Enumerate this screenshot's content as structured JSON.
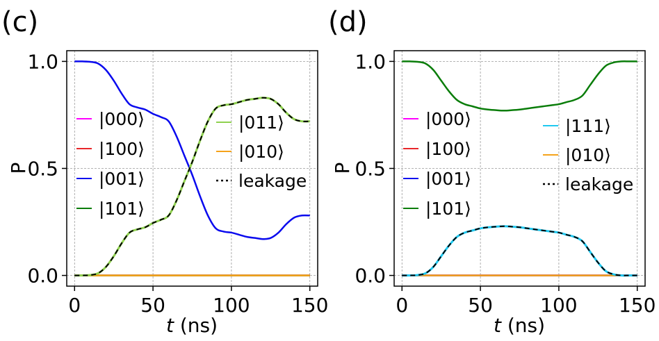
{
  "chart_data": [
    {
      "panel_label": "(c)",
      "type": "line",
      "xlabel_var": "t",
      "xlabel_unit": " (ns)",
      "ylabel": "P",
      "xlim": [
        -5,
        155
      ],
      "ylim": [
        -0.05,
        1.05
      ],
      "xticks": [
        0,
        50,
        100,
        150
      ],
      "xtick_labels": [
        "0",
        "50",
        "100",
        "150"
      ],
      "yticks": [
        0.0,
        0.5,
        1.0
      ],
      "ytick_labels": [
        "0.0",
        "0.5",
        "1.0"
      ],
      "grid": true,
      "legend_left": [
        "|000⟩",
        "|100⟩",
        "|001⟩",
        "|101⟩"
      ],
      "legend_right": [
        "|011⟩",
        "|010⟩",
        "leakage"
      ],
      "series": [
        {
          "name": "|000⟩",
          "color": "#ff00ff",
          "dash": false,
          "width": 2.5,
          "x": [
            0,
            150
          ],
          "y": [
            0.0,
            0.0
          ]
        },
        {
          "name": "|100⟩",
          "color": "#e8262a",
          "dash": false,
          "width": 2.5,
          "x": [
            0,
            150
          ],
          "y": [
            0.0,
            0.0
          ]
        },
        {
          "name": "|101⟩",
          "color": "#0a7d0a",
          "dash": false,
          "width": 2.5,
          "x": [
            0,
            150
          ],
          "y": [
            0.0,
            0.0
          ]
        },
        {
          "name": "|010⟩",
          "color": "#f5a31a",
          "dash": false,
          "width": 2.5,
          "x": [
            0,
            150
          ],
          "y": [
            0.0,
            0.0
          ]
        },
        {
          "name": "|001⟩",
          "color": "#0a0aee",
          "dash": false,
          "width": 2.5,
          "x": [
            0,
            5,
            10,
            15,
            20,
            25,
            30,
            35,
            40,
            45,
            50,
            55,
            60,
            65,
            70,
            75,
            80,
            85,
            90,
            95,
            100,
            105,
            110,
            115,
            120,
            125,
            130,
            135,
            140,
            145,
            150
          ],
          "y": [
            1.0,
            1.0,
            0.998,
            0.99,
            0.96,
            0.91,
            0.85,
            0.8,
            0.785,
            0.775,
            0.755,
            0.74,
            0.72,
            0.65,
            0.56,
            0.47,
            0.37,
            0.28,
            0.22,
            0.205,
            0.2,
            0.19,
            0.18,
            0.175,
            0.17,
            0.175,
            0.2,
            0.24,
            0.27,
            0.28,
            0.28
          ]
        },
        {
          "name": "|011⟩",
          "color": "#8fd14f",
          "dash": false,
          "width": 3,
          "x": [
            0,
            5,
            10,
            15,
            20,
            25,
            30,
            35,
            40,
            45,
            50,
            55,
            60,
            65,
            70,
            75,
            80,
            85,
            90,
            95,
            100,
            105,
            110,
            115,
            120,
            125,
            130,
            135,
            140,
            145,
            150
          ],
          "y": [
            0.0,
            0.0,
            0.002,
            0.01,
            0.04,
            0.09,
            0.15,
            0.2,
            0.215,
            0.225,
            0.245,
            0.26,
            0.28,
            0.35,
            0.44,
            0.53,
            0.63,
            0.72,
            0.78,
            0.795,
            0.8,
            0.81,
            0.82,
            0.825,
            0.83,
            0.825,
            0.8,
            0.76,
            0.73,
            0.72,
            0.72
          ]
        },
        {
          "name": "leakage",
          "color": "#000000",
          "dash": true,
          "width": 2,
          "x": [
            0,
            5,
            10,
            15,
            20,
            25,
            30,
            35,
            40,
            45,
            50,
            55,
            60,
            65,
            70,
            75,
            80,
            85,
            90,
            95,
            100,
            105,
            110,
            115,
            120,
            125,
            130,
            135,
            140,
            145,
            150
          ],
          "y": [
            0.0,
            0.0,
            0.002,
            0.01,
            0.04,
            0.09,
            0.15,
            0.2,
            0.215,
            0.225,
            0.245,
            0.26,
            0.28,
            0.35,
            0.44,
            0.53,
            0.63,
            0.72,
            0.78,
            0.795,
            0.8,
            0.81,
            0.82,
            0.825,
            0.83,
            0.825,
            0.8,
            0.76,
            0.73,
            0.72,
            0.72
          ]
        }
      ]
    },
    {
      "panel_label": "(d)",
      "type": "line",
      "xlabel_var": "t",
      "xlabel_unit": " (ns)",
      "ylabel": "P",
      "xlim": [
        -5,
        155
      ],
      "ylim": [
        -0.05,
        1.05
      ],
      "xticks": [
        0,
        50,
        100,
        150
      ],
      "xtick_labels": [
        "0",
        "50",
        "100",
        "150"
      ],
      "yticks": [
        0.0,
        0.5,
        1.0
      ],
      "ytick_labels": [
        "0.0",
        "0.5",
        "1.0"
      ],
      "grid": true,
      "legend_left": [
        "|000⟩",
        "|100⟩",
        "|001⟩",
        "|101⟩"
      ],
      "legend_right": [
        "|111⟩",
        "|010⟩",
        "leakage"
      ],
      "series": [
        {
          "name": "|000⟩",
          "color": "#ff00ff",
          "dash": false,
          "width": 2.5,
          "x": [
            0,
            150
          ],
          "y": [
            0.0,
            0.0
          ]
        },
        {
          "name": "|100⟩",
          "color": "#e8262a",
          "dash": false,
          "width": 2.5,
          "x": [
            0,
            150
          ],
          "y": [
            0.0,
            0.0
          ]
        },
        {
          "name": "|001⟩",
          "color": "#0a0aee",
          "dash": false,
          "width": 2.5,
          "x": [
            0,
            150
          ],
          "y": [
            0.0,
            0.0
          ]
        },
        {
          "name": "|010⟩",
          "color": "#f5a31a",
          "dash": false,
          "width": 2.5,
          "x": [
            0,
            150
          ],
          "y": [
            0.0,
            0.0
          ]
        },
        {
          "name": "|101⟩",
          "color": "#0a7d0a",
          "dash": false,
          "width": 2.5,
          "x": [
            0,
            5,
            10,
            15,
            20,
            25,
            30,
            35,
            40,
            45,
            50,
            55,
            60,
            65,
            70,
            75,
            80,
            85,
            90,
            95,
            100,
            105,
            110,
            115,
            120,
            125,
            130,
            135,
            140,
            145,
            150
          ],
          "y": [
            1.0,
            1.0,
            0.998,
            0.99,
            0.96,
            0.91,
            0.86,
            0.82,
            0.8,
            0.79,
            0.78,
            0.775,
            0.772,
            0.77,
            0.772,
            0.775,
            0.78,
            0.785,
            0.79,
            0.795,
            0.8,
            0.81,
            0.82,
            0.84,
            0.89,
            0.94,
            0.98,
            0.995,
            1.0,
            1.0,
            1.0
          ]
        },
        {
          "name": "|111⟩",
          "color": "#1ec8f0",
          "dash": false,
          "width": 3,
          "x": [
            0,
            5,
            10,
            15,
            20,
            25,
            30,
            35,
            40,
            45,
            50,
            55,
            60,
            65,
            70,
            75,
            80,
            85,
            90,
            95,
            100,
            105,
            110,
            115,
            120,
            125,
            130,
            135,
            140,
            145,
            150
          ],
          "y": [
            0.0,
            0.0,
            0.002,
            0.01,
            0.04,
            0.09,
            0.14,
            0.18,
            0.2,
            0.21,
            0.22,
            0.225,
            0.228,
            0.23,
            0.228,
            0.225,
            0.22,
            0.215,
            0.21,
            0.205,
            0.2,
            0.19,
            0.18,
            0.16,
            0.11,
            0.06,
            0.02,
            0.005,
            0.0,
            0.0,
            0.0
          ]
        },
        {
          "name": "leakage",
          "color": "#000000",
          "dash": true,
          "width": 2,
          "x": [
            0,
            5,
            10,
            15,
            20,
            25,
            30,
            35,
            40,
            45,
            50,
            55,
            60,
            65,
            70,
            75,
            80,
            85,
            90,
            95,
            100,
            105,
            110,
            115,
            120,
            125,
            130,
            135,
            140,
            145,
            150
          ],
          "y": [
            0.0,
            0.0,
            0.002,
            0.01,
            0.04,
            0.09,
            0.14,
            0.18,
            0.2,
            0.21,
            0.22,
            0.225,
            0.228,
            0.23,
            0.228,
            0.225,
            0.22,
            0.215,
            0.21,
            0.205,
            0.2,
            0.19,
            0.18,
            0.16,
            0.11,
            0.06,
            0.02,
            0.005,
            0.0,
            0.0,
            0.0
          ]
        }
      ]
    }
  ]
}
